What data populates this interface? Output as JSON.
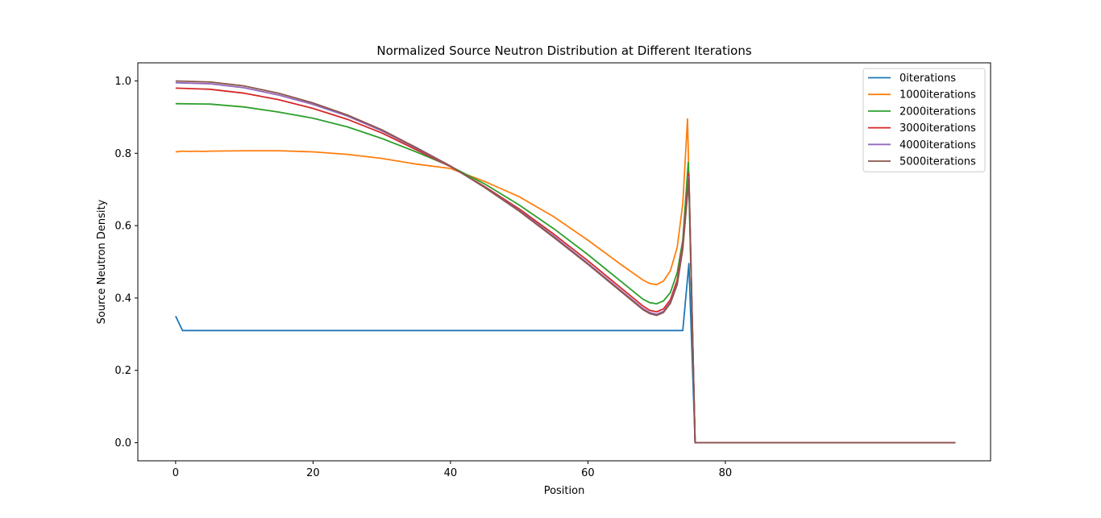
{
  "chart_data": {
    "type": "line",
    "title": "Normalized Source Neutron Distribution at Different Iterations",
    "xlabel": "Position",
    "ylabel": "Source Neutron Density",
    "xlim": [
      -5.5,
      118.6
    ],
    "ylim": [
      -0.05,
      1.05
    ],
    "xticks": [
      0,
      20,
      40,
      60,
      80
    ],
    "yticks": [
      0.0,
      0.2,
      0.4,
      0.6,
      0.8,
      1.0
    ],
    "xtick_labels": [
      "0",
      "20",
      "40",
      "60",
      "80"
    ],
    "ytick_labels": [
      "0.0",
      "0.2",
      "0.4",
      "0.6",
      "0.8",
      "1.0"
    ],
    "grid": false,
    "legend_position": "top-right",
    "series": [
      {
        "name": "0iterations",
        "color": "#1f77b4",
        "points": [
          [
            0,
            0.35
          ],
          [
            1,
            0.31
          ],
          [
            10,
            0.31
          ],
          [
            20,
            0.31
          ],
          [
            30,
            0.31
          ],
          [
            40,
            0.31
          ],
          [
            50,
            0.31
          ],
          [
            60,
            0.31
          ],
          [
            70,
            0.31
          ],
          [
            73.8,
            0.31
          ],
          [
            74.7,
            0.495
          ],
          [
            75.6,
            0.0
          ],
          [
            80,
            0.0
          ],
          [
            90,
            0.0
          ],
          [
            113.5,
            0.0
          ]
        ]
      },
      {
        "name": "1000iterations",
        "color": "#ff7f0e",
        "points": [
          [
            0,
            0.804
          ],
          [
            1,
            0.806
          ],
          [
            2,
            0.805
          ],
          [
            3,
            0.806
          ],
          [
            4,
            0.805
          ],
          [
            5,
            0.806
          ],
          [
            10,
            0.807
          ],
          [
            15,
            0.807
          ],
          [
            20,
            0.804
          ],
          [
            25,
            0.797
          ],
          [
            30,
            0.786
          ],
          [
            35,
            0.77
          ],
          [
            40,
            0.758
          ],
          [
            45,
            0.722
          ],
          [
            50,
            0.68
          ],
          [
            55,
            0.625
          ],
          [
            60,
            0.56
          ],
          [
            65,
            0.49
          ],
          [
            68,
            0.45
          ],
          [
            69,
            0.44
          ],
          [
            70,
            0.437
          ],
          [
            71,
            0.447
          ],
          [
            72,
            0.475
          ],
          [
            73,
            0.54
          ],
          [
            73.8,
            0.66
          ],
          [
            74.5,
            0.895
          ],
          [
            75.6,
            0.0
          ],
          [
            80,
            0.0
          ],
          [
            90,
            0.0
          ],
          [
            113.5,
            0.0
          ]
        ]
      },
      {
        "name": "2000iterations",
        "color": "#2ca02c",
        "points": [
          [
            0,
            0.937
          ],
          [
            5,
            0.936
          ],
          [
            10,
            0.928
          ],
          [
            15,
            0.914
          ],
          [
            20,
            0.897
          ],
          [
            25,
            0.873
          ],
          [
            30,
            0.841
          ],
          [
            35,
            0.804
          ],
          [
            40,
            0.764
          ],
          [
            45,
            0.715
          ],
          [
            50,
            0.657
          ],
          [
            55,
            0.592
          ],
          [
            60,
            0.52
          ],
          [
            65,
            0.443
          ],
          [
            68,
            0.397
          ],
          [
            69,
            0.387
          ],
          [
            70,
            0.384
          ],
          [
            71,
            0.392
          ],
          [
            72,
            0.415
          ],
          [
            73,
            0.47
          ],
          [
            73.8,
            0.56
          ],
          [
            74.6,
            0.775
          ],
          [
            75.6,
            0.0
          ],
          [
            80,
            0.0
          ],
          [
            90,
            0.0
          ],
          [
            113.5,
            0.0
          ]
        ]
      },
      {
        "name": "3000iterations",
        "color": "#d62728",
        "points": [
          [
            0,
            0.98
          ],
          [
            5,
            0.977
          ],
          [
            10,
            0.966
          ],
          [
            15,
            0.948
          ],
          [
            20,
            0.924
          ],
          [
            25,
            0.894
          ],
          [
            30,
            0.856
          ],
          [
            35,
            0.81
          ],
          [
            40,
            0.763
          ],
          [
            45,
            0.708
          ],
          [
            50,
            0.646
          ],
          [
            55,
            0.577
          ],
          [
            60,
            0.503
          ],
          [
            65,
            0.425
          ],
          [
            68,
            0.378
          ],
          [
            69,
            0.366
          ],
          [
            70,
            0.362
          ],
          [
            71,
            0.37
          ],
          [
            72,
            0.395
          ],
          [
            73,
            0.45
          ],
          [
            73.8,
            0.55
          ],
          [
            74.7,
            0.745
          ],
          [
            75.6,
            0.0
          ],
          [
            80,
            0.0
          ],
          [
            90,
            0.0
          ],
          [
            113.5,
            0.0
          ]
        ]
      },
      {
        "name": "4000iterations",
        "color": "#9467bd",
        "points": [
          [
            0,
            0.995
          ],
          [
            5,
            0.992
          ],
          [
            10,
            0.981
          ],
          [
            15,
            0.961
          ],
          [
            20,
            0.935
          ],
          [
            25,
            0.903
          ],
          [
            30,
            0.862
          ],
          [
            35,
            0.814
          ],
          [
            40,
            0.764
          ],
          [
            45,
            0.706
          ],
          [
            50,
            0.642
          ],
          [
            55,
            0.571
          ],
          [
            60,
            0.496
          ],
          [
            65,
            0.418
          ],
          [
            68,
            0.371
          ],
          [
            69,
            0.36
          ],
          [
            70,
            0.355
          ],
          [
            71,
            0.363
          ],
          [
            72,
            0.388
          ],
          [
            73,
            0.44
          ],
          [
            73.8,
            0.54
          ],
          [
            74.7,
            0.735
          ],
          [
            75.6,
            0.0
          ],
          [
            80,
            0.0
          ],
          [
            90,
            0.0
          ],
          [
            113.5,
            0.0
          ]
        ]
      },
      {
        "name": "5000iterations",
        "color": "#8c564b",
        "points": [
          [
            0,
            1.0
          ],
          [
            5,
            0.997
          ],
          [
            10,
            0.986
          ],
          [
            15,
            0.966
          ],
          [
            20,
            0.939
          ],
          [
            25,
            0.906
          ],
          [
            30,
            0.865
          ],
          [
            35,
            0.816
          ],
          [
            40,
            0.765
          ],
          [
            45,
            0.705
          ],
          [
            50,
            0.64
          ],
          [
            55,
            0.568
          ],
          [
            60,
            0.493
          ],
          [
            65,
            0.415
          ],
          [
            68,
            0.368
          ],
          [
            69,
            0.357
          ],
          [
            70,
            0.352
          ],
          [
            71,
            0.36
          ],
          [
            72,
            0.385
          ],
          [
            73,
            0.437
          ],
          [
            73.8,
            0.535
          ],
          [
            74.7,
            0.73
          ],
          [
            75.6,
            0.0
          ],
          [
            80,
            0.0
          ],
          [
            90,
            0.0
          ],
          [
            113.5,
            0.0
          ]
        ]
      }
    ]
  }
}
